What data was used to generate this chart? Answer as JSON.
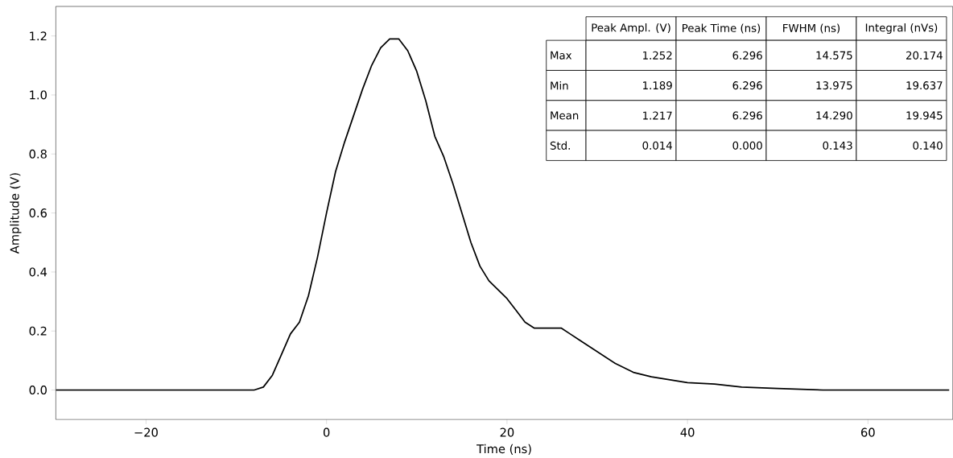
{
  "chart_data": {
    "type": "line",
    "xlabel": "Time (ns)",
    "ylabel": "Amplitude (V)",
    "x": [
      -30,
      -20,
      -10,
      -8,
      -7,
      -6,
      -5,
      -4,
      -3,
      -2,
      -1,
      0,
      1,
      2,
      3,
      4,
      5,
      6,
      7,
      8,
      9,
      10,
      11,
      12,
      13,
      14,
      15,
      16,
      17,
      18,
      19,
      20,
      21,
      22,
      23,
      24,
      25,
      26,
      27,
      28,
      29,
      30,
      32,
      34,
      36,
      38,
      40,
      43,
      46,
      50,
      55,
      69
    ],
    "series": [
      {
        "color": "#000000",
        "values": [
          0,
          0,
          0,
          0,
          0.01,
          0.05,
          0.12,
          0.19,
          0.23,
          0.32,
          0.45,
          0.6,
          0.74,
          0.84,
          0.93,
          1.02,
          1.1,
          1.16,
          1.19,
          1.19,
          1.15,
          1.08,
          0.98,
          0.86,
          0.79,
          0.7,
          0.6,
          0.5,
          0.42,
          0.37,
          0.34,
          0.31,
          0.27,
          0.23,
          0.21,
          0.21,
          0.21,
          0.21,
          0.19,
          0.17,
          0.15,
          0.13,
          0.09,
          0.06,
          0.045,
          0.035,
          0.025,
          0.02,
          0.01,
          0.005,
          0,
          0
        ]
      }
    ],
    "xlim": [
      -30,
      69.4
    ],
    "ylim": [
      -0.1,
      1.3
    ],
    "xticks": [
      {
        "value": -20,
        "label": "−20"
      },
      0,
      20,
      40,
      60
    ],
    "yticks": [
      {
        "value": 0,
        "label": "0.0"
      },
      {
        "value": 0.2,
        "label": "0.2"
      },
      {
        "value": 0.4,
        "label": "0.4"
      },
      {
        "value": 0.6,
        "label": "0.6"
      },
      {
        "value": 0.8,
        "label": "0.8"
      },
      {
        "value": 1.0,
        "label": "1.0"
      },
      {
        "value": 1.2,
        "label": "1.2"
      }
    ],
    "grid": false,
    "marker": "none",
    "line_style": "solid",
    "annotations": [
      "Peak Ampl. (V)",
      "Peak Time (ns)",
      "FWHM (ns)",
      "Integral (nVs)",
      "Max",
      "1.252",
      "6.296",
      "14.575",
      "20.174",
      "Min",
      "1.189",
      "6.296",
      "13.975",
      "19.637",
      "Mean",
      "1.217",
      "6.296",
      "14.290",
      "19.945",
      "Std.",
      "0.014",
      "0.000",
      "0.143",
      "0.140"
    ]
  }
}
